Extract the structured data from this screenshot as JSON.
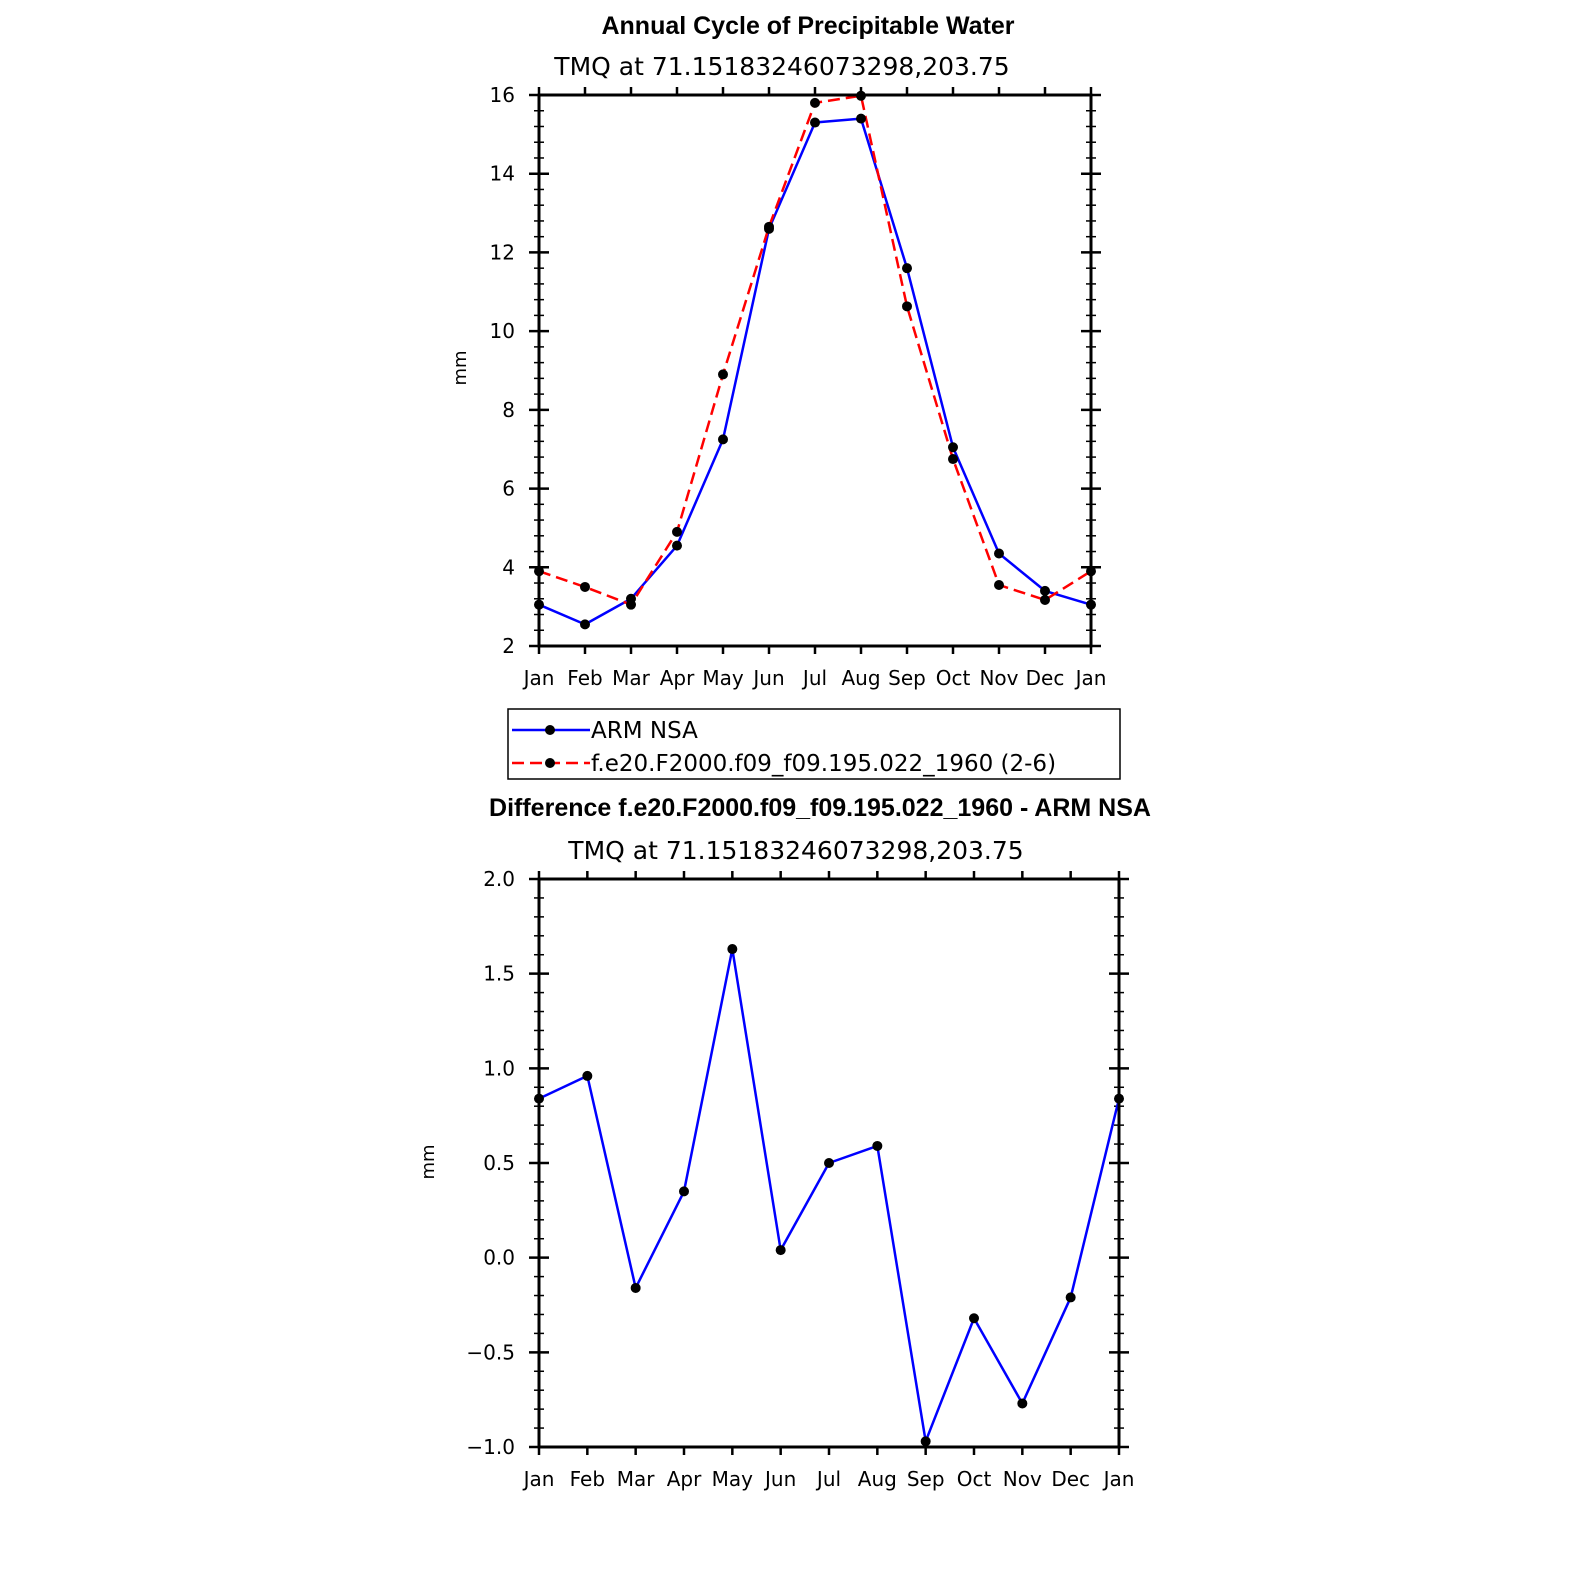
{
  "chart_data": [
    {
      "type": "line",
      "title": "Annual Cycle of Precipitable Water",
      "subtitle": "TMQ at 71.15183246073298,203.75",
      "xlabel": "",
      "ylabel": "mm",
      "categories": [
        "Jan",
        "Feb",
        "Mar",
        "Apr",
        "May",
        "Jun",
        "Jul",
        "Aug",
        "Sep",
        "Oct",
        "Nov",
        "Dec",
        "Jan"
      ],
      "ylim": [
        2,
        16
      ],
      "yticks": [
        "2",
        "4",
        "6",
        "8",
        "10",
        "12",
        "14",
        "16"
      ],
      "grid": false,
      "legend_position": "below",
      "series": [
        {
          "name": "ARM NSA",
          "color": "#0000ff",
          "style": "solid",
          "values": [
            3.05,
            2.55,
            3.2,
            4.55,
            7.25,
            12.6,
            15.3,
            15.4,
            11.6,
            7.05,
            4.35,
            3.4,
            3.05
          ]
        },
        {
          "name": "f.e20.F2000.f09_f09.195.022_1960 (2-6)",
          "color": "#ff0000",
          "style": "dashed",
          "values": [
            3.9,
            3.5,
            3.05,
            4.9,
            8.9,
            12.65,
            15.8,
            15.98,
            10.63,
            6.75,
            3.55,
            3.17,
            3.9
          ]
        }
      ]
    },
    {
      "type": "line",
      "title": "Difference f.e20.F2000.f09_f09.195.022_1960 - ARM NSA",
      "subtitle": "TMQ at 71.15183246073298,203.75",
      "xlabel": "",
      "ylabel": "mm",
      "categories": [
        "Jan",
        "Feb",
        "Mar",
        "Apr",
        "May",
        "Jun",
        "Jul",
        "Aug",
        "Sep",
        "Oct",
        "Nov",
        "Dec",
        "Jan"
      ],
      "ylim": [
        -1.0,
        2.0
      ],
      "yticks": [
        "−1.0",
        "−0.5",
        "0.0",
        "0.5",
        "1.0",
        "1.5",
        "2.0"
      ],
      "grid": false,
      "series": [
        {
          "name": "Difference",
          "color": "#0000ff",
          "style": "solid",
          "values": [
            0.84,
            0.96,
            -0.16,
            0.35,
            1.63,
            0.04,
            0.5,
            0.59,
            -0.97,
            -0.32,
            -0.77,
            -0.21,
            0.84
          ]
        }
      ]
    }
  ]
}
